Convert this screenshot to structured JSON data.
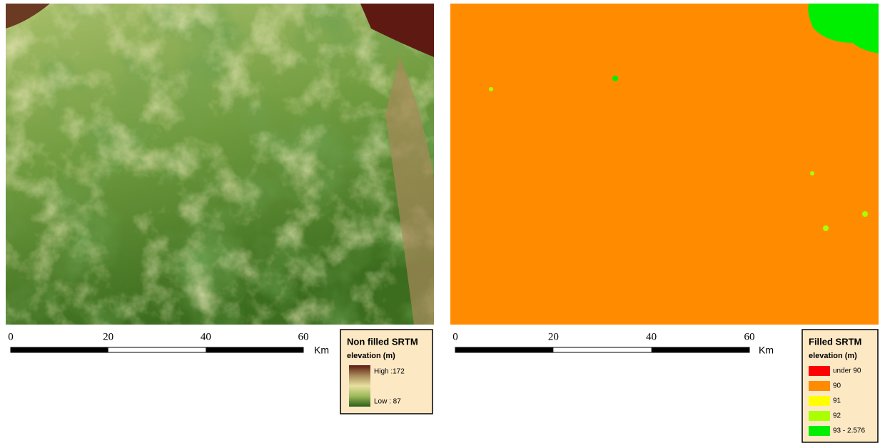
{
  "maps": [
    {
      "scale_bar": {
        "labels": [
          "0",
          "20",
          "40",
          "60"
        ],
        "unit": "Km"
      },
      "legend": {
        "title": "Non filled SRTM",
        "subtitle": "elevation (m)",
        "high": "High :172",
        "low": "Low : 87",
        "ramp": [
          "#5e1a12",
          "#a88a5a",
          "#e8e0a0",
          "#9cb85a",
          "#2a5e14"
        ]
      }
    },
    {
      "scale_bar": {
        "labels": [
          "0",
          "20",
          "40",
          "60"
        ],
        "unit": "Km"
      },
      "legend": {
        "title": "Filled SRTM",
        "subtitle": "elevation (m)",
        "items": [
          {
            "label": "under 90",
            "color": "#ff0000"
          },
          {
            "label": "90",
            "color": "#ff8c00"
          },
          {
            "label": "91",
            "color": "#ffff00"
          },
          {
            "label": "92",
            "color": "#aaff00"
          },
          {
            "label": "93 - 2.576",
            "color": "#00ee00"
          }
        ]
      }
    }
  ]
}
